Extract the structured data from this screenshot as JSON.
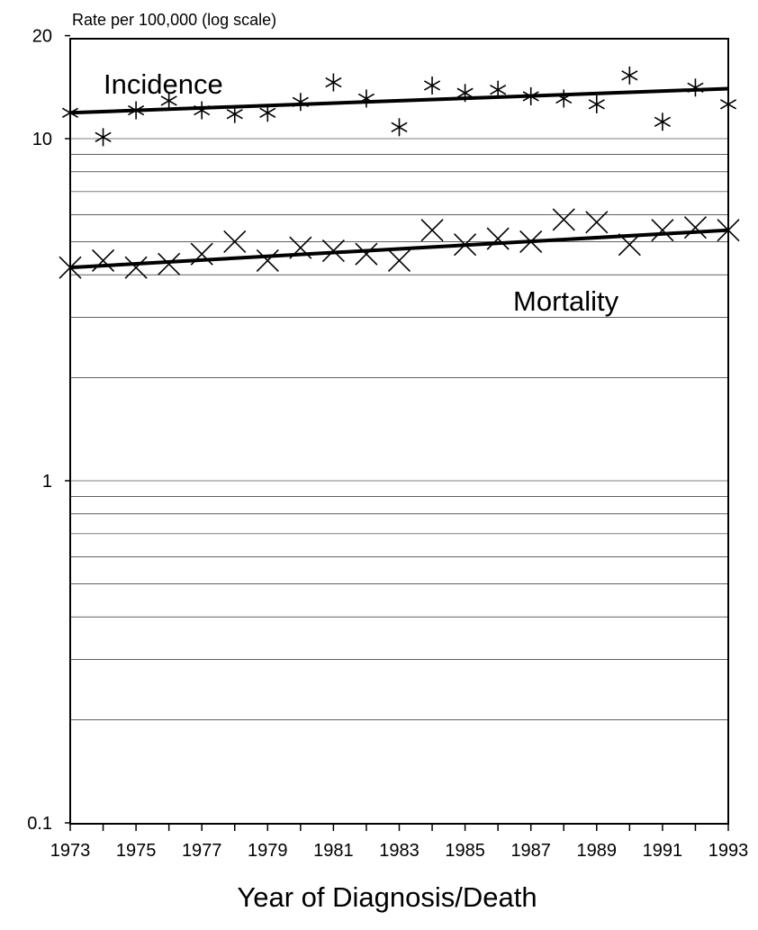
{
  "chart_data": {
    "type": "scatter",
    "title": "",
    "ylabel": "Rate per 100,000 (log scale)",
    "xlabel": "Year of Diagnosis/Death",
    "y_scale": "log",
    "ylim": [
      0.1,
      20
    ],
    "xlim": [
      1973,
      1993
    ],
    "grid": "horizontal",
    "y_tick_labels": [
      "20",
      "10",
      "1",
      "0.1"
    ],
    "y_tick_values": [
      20,
      10,
      1,
      0.1
    ],
    "x_tick_labels": [
      "1973",
      "1975",
      "1977",
      "1979",
      "1981",
      "1983",
      "1985",
      "1987",
      "1989",
      "1991",
      "1993"
    ],
    "x_tick_values": [
      1973,
      1975,
      1977,
      1979,
      1981,
      1983,
      1985,
      1987,
      1989,
      1991,
      1993
    ],
    "x": [
      1973,
      1974,
      1975,
      1976,
      1977,
      1978,
      1979,
      1980,
      1981,
      1982,
      1983,
      1984,
      1985,
      1986,
      1987,
      1988,
      1989,
      1990,
      1991,
      1992,
      1993
    ],
    "series": [
      {
        "name": "Incidence",
        "marker": "asterisk",
        "values": [
          11.9,
          10.1,
          12.1,
          12.9,
          12.1,
          11.8,
          11.9,
          12.8,
          14.6,
          13.1,
          10.8,
          14.3,
          13.6,
          13.9,
          13.3,
          13.1,
          12.6,
          15.3,
          11.2,
          14.1,
          12.6
        ],
        "trend": [
          11.9,
          14.0
        ]
      },
      {
        "name": "Mortality",
        "marker": "x",
        "values": [
          4.2,
          4.4,
          4.2,
          4.3,
          4.6,
          5.0,
          4.4,
          4.8,
          4.7,
          4.6,
          4.4,
          5.4,
          4.9,
          5.1,
          5.0,
          5.8,
          5.7,
          4.9,
          5.4,
          5.5,
          5.4
        ],
        "trend": [
          4.2,
          5.4
        ]
      }
    ]
  }
}
